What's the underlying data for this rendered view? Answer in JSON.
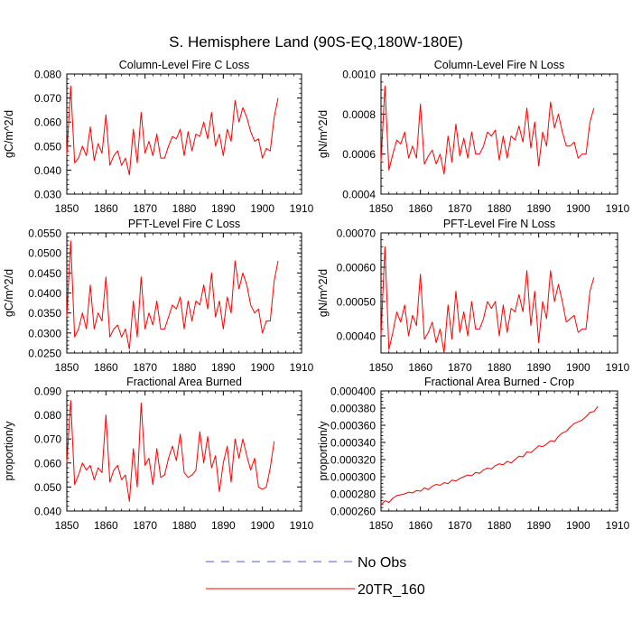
{
  "figure_title": "S. Hemisphere Land (90S-EQ,180W-180E)",
  "legend": {
    "items": [
      {
        "label": "No Obs",
        "style": "dashed",
        "color": "#5a5acc"
      },
      {
        "label": "20TR_160",
        "style": "solid",
        "color": "#ff0000"
      }
    ]
  },
  "colors": {
    "series": "#ff0000",
    "axis": "#000000"
  },
  "chart_data": [
    {
      "type": "line",
      "title": "Column-Level Fire C Loss",
      "ylabel": "gC/m^2/d",
      "xlabel": "",
      "xlim": [
        1850,
        1910
      ],
      "ylim": [
        0.03,
        0.08
      ],
      "xticks": [
        1850,
        1860,
        1870,
        1880,
        1890,
        1900,
        1910
      ],
      "yticks": [
        0.03,
        0.04,
        0.05,
        0.06,
        0.07,
        0.08
      ],
      "ytick_labels": [
        "0.030",
        "0.040",
        "0.050",
        "0.060",
        "0.070",
        "0.080"
      ],
      "series": [
        {
          "name": "20TR_160",
          "x_start": 1850,
          "values": [
            0.046,
            0.075,
            0.043,
            0.045,
            0.05,
            0.046,
            0.058,
            0.044,
            0.051,
            0.047,
            0.063,
            0.042,
            0.046,
            0.048,
            0.042,
            0.045,
            0.038,
            0.057,
            0.043,
            0.064,
            0.047,
            0.052,
            0.046,
            0.055,
            0.045,
            0.045,
            0.05,
            0.054,
            0.053,
            0.057,
            0.046,
            0.056,
            0.048,
            0.055,
            0.054,
            0.06,
            0.053,
            0.064,
            0.05,
            0.055,
            0.046,
            0.057,
            0.052,
            0.069,
            0.06,
            0.066,
            0.062,
            0.056,
            0.052,
            0.053,
            0.045,
            0.049,
            0.048,
            0.062,
            0.07
          ]
        }
      ]
    },
    {
      "type": "line",
      "title": "Column-Level Fire N Loss",
      "ylabel": "gN/m^2/d",
      "xlabel": "",
      "xlim": [
        1850,
        1910
      ],
      "ylim": [
        0.0004,
        0.001
      ],
      "xticks": [
        1850,
        1860,
        1870,
        1880,
        1890,
        1900,
        1910
      ],
      "yticks": [
        0.0004,
        0.0006,
        0.0008,
        0.001
      ],
      "ytick_labels": [
        "0.0004",
        "0.0006",
        "0.0008",
        "0.0010"
      ],
      "series": [
        {
          "name": "20TR_160",
          "x_start": 1850,
          "values": [
            0.00056,
            0.00094,
            0.00052,
            0.0006,
            0.00067,
            0.00065,
            0.00071,
            0.00058,
            0.00064,
            0.00058,
            0.00085,
            0.00055,
            0.00059,
            0.00062,
            0.00055,
            0.0006,
            0.0005,
            0.00069,
            0.00056,
            0.00075,
            0.00059,
            0.00068,
            0.00058,
            0.00071,
            0.0006,
            0.0006,
            0.00064,
            0.00071,
            0.00069,
            0.00072,
            0.00057,
            0.00069,
            0.00058,
            0.00069,
            0.00067,
            0.00074,
            0.00066,
            0.00083,
            0.00063,
            0.00076,
            0.00054,
            0.00071,
            0.00064,
            0.00086,
            0.00073,
            0.0008,
            0.00071,
            0.00064,
            0.00064,
            0.00066,
            0.00058,
            0.0006,
            0.0006,
            0.00076,
            0.00083
          ]
        }
      ]
    },
    {
      "type": "line",
      "title": "PFT-Level Fire C Loss",
      "ylabel": "gC/m^2/d",
      "xlabel": "",
      "xlim": [
        1850,
        1910
      ],
      "ylim": [
        0.025,
        0.055
      ],
      "xticks": [
        1850,
        1860,
        1870,
        1880,
        1890,
        1900,
        1910
      ],
      "yticks": [
        0.025,
        0.03,
        0.035,
        0.04,
        0.045,
        0.05,
        0.055
      ],
      "ytick_labels": [
        "0.0250",
        "0.0300",
        "0.0350",
        "0.0400",
        "0.0450",
        "0.0500",
        "0.0550"
      ],
      "series": [
        {
          "name": "20TR_160",
          "x_start": 1850,
          "values": [
            0.034,
            0.053,
            0.029,
            0.031,
            0.035,
            0.031,
            0.042,
            0.031,
            0.035,
            0.033,
            0.044,
            0.029,
            0.031,
            0.032,
            0.029,
            0.031,
            0.026,
            0.038,
            0.029,
            0.044,
            0.031,
            0.035,
            0.032,
            0.038,
            0.031,
            0.031,
            0.034,
            0.037,
            0.036,
            0.039,
            0.031,
            0.038,
            0.033,
            0.038,
            0.037,
            0.042,
            0.036,
            0.045,
            0.034,
            0.038,
            0.031,
            0.039,
            0.035,
            0.048,
            0.041,
            0.045,
            0.042,
            0.037,
            0.035,
            0.036,
            0.03,
            0.033,
            0.033,
            0.043,
            0.048
          ]
        }
      ]
    },
    {
      "type": "line",
      "title": "PFT-Level Fire N Loss",
      "ylabel": "gN/m^2/d",
      "xlabel": "",
      "xlim": [
        1850,
        1910
      ],
      "ylim": [
        0.00035,
        0.0007
      ],
      "xticks": [
        1850,
        1860,
        1870,
        1880,
        1890,
        1900,
        1910
      ],
      "yticks": [
        0.0004,
        0.0005,
        0.0006,
        0.0007
      ],
      "ytick_labels": [
        "0.00040",
        "0.00050",
        "0.00060",
        "0.00070"
      ],
      "series": [
        {
          "name": "20TR_160",
          "x_start": 1850,
          "values": [
            0.0004,
            0.00066,
            0.00036,
            0.00041,
            0.00047,
            0.00044,
            0.00049,
            0.0004,
            0.00046,
            0.00043,
            0.00058,
            0.00039,
            0.00041,
            0.00044,
            0.00038,
            0.00042,
            0.00035,
            0.00049,
            0.00039,
            0.00053,
            0.00041,
            0.00047,
            0.0004,
            0.0005,
            0.00042,
            0.00042,
            0.00045,
            0.0005,
            0.00048,
            0.0005,
            0.0004,
            0.00049,
            0.00041,
            0.00048,
            0.00047,
            0.00052,
            0.00047,
            0.00059,
            0.00043,
            0.00053,
            0.00038,
            0.0005,
            0.00045,
            0.00059,
            0.0005,
            0.00055,
            0.0005,
            0.00044,
            0.00045,
            0.00046,
            0.00041,
            0.00042,
            0.00042,
            0.00053,
            0.00057
          ]
        }
      ]
    },
    {
      "type": "line",
      "title": "Fractional Area Burned",
      "ylabel": "proportion/y",
      "xlabel": "",
      "xlim": [
        1850,
        1910
      ],
      "ylim": [
        0.04,
        0.09
      ],
      "xticks": [
        1850,
        1860,
        1870,
        1880,
        1890,
        1900,
        1910
      ],
      "yticks": [
        0.04,
        0.05,
        0.06,
        0.07,
        0.08,
        0.09
      ],
      "ytick_labels": [
        "0.040",
        "0.050",
        "0.060",
        "0.070",
        "0.080",
        "0.090"
      ],
      "series": [
        {
          "name": "20TR_160",
          "x_start": 1850,
          "values": [
            0.06,
            0.086,
            0.051,
            0.055,
            0.06,
            0.057,
            0.059,
            0.053,
            0.058,
            0.056,
            0.08,
            0.052,
            0.057,
            0.059,
            0.053,
            0.055,
            0.044,
            0.066,
            0.05,
            0.085,
            0.059,
            0.062,
            0.051,
            0.066,
            0.054,
            0.055,
            0.062,
            0.067,
            0.061,
            0.072,
            0.056,
            0.054,
            0.055,
            0.057,
            0.073,
            0.06,
            0.071,
            0.058,
            0.063,
            0.048,
            0.06,
            0.067,
            0.052,
            0.07,
            0.062,
            0.07,
            0.063,
            0.057,
            0.062,
            0.05,
            0.049,
            0.05,
            0.058,
            0.069
          ]
        }
      ]
    },
    {
      "type": "line",
      "title": "Fractional Area Burned - Crop",
      "ylabel": "proportion/y",
      "xlabel": "",
      "xlim": [
        1850,
        1910
      ],
      "ylim": [
        0.00026,
        0.0004
      ],
      "xticks": [
        1850,
        1860,
        1870,
        1880,
        1890,
        1900,
        1910
      ],
      "yticks": [
        0.00026,
        0.00028,
        0.0003,
        0.00032,
        0.00034,
        0.00036,
        0.00038,
        0.0004
      ],
      "ytick_labels": [
        "0.000260",
        "0.000280",
        "0.000300",
        "0.000320",
        "0.000340",
        "0.000360",
        "0.000380",
        "0.000400"
      ],
      "series": [
        {
          "name": "20TR_160",
          "x_start": 1850,
          "values": [
            0.000267,
            0.000272,
            0.00027,
            0.000275,
            0.000278,
            0.000279,
            0.00028,
            0.000282,
            0.000281,
            0.000284,
            0.000283,
            0.000287,
            0.000285,
            0.000289,
            0.000291,
            0.00029,
            0.000293,
            0.000292,
            0.000296,
            0.000295,
            0.000298,
            0.0003,
            0.000302,
            0.000301,
            0.000305,
            0.000304,
            0.000308,
            0.00031,
            0.000309,
            0.000313,
            0.000315,
            0.000314,
            0.000318,
            0.000316,
            0.00032,
            0.000324,
            0.000323,
            0.000329,
            0.000328,
            0.000332,
            0.000336,
            0.000335,
            0.000338,
            0.000342,
            0.000341,
            0.000347,
            0.000351,
            0.000353,
            0.000358,
            0.000362,
            0.000364,
            0.000366,
            0.00037,
            0.000375,
            0.000376,
            0.000382
          ]
        }
      ]
    }
  ]
}
